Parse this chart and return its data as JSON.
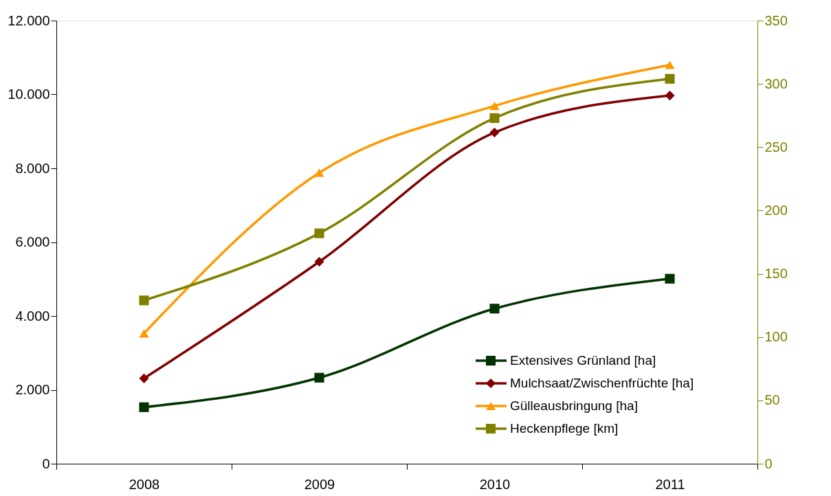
{
  "chart_data": {
    "type": "line",
    "categories": [
      "2008",
      "2009",
      "2010",
      "2011"
    ],
    "series": [
      {
        "name": "Extensives Grünland [ha]",
        "color": "#003300",
        "marker": "square",
        "values": [
          1530,
          2330,
          4200,
          5010
        ]
      },
      {
        "name": "Mulchsaat/Zwischenfrüchte [ha]",
        "color": "#800000",
        "marker": "diamond",
        "values": [
          2310,
          5470,
          8970,
          9970
        ]
      },
      {
        "name": "Gülleausbringung [ha]",
        "color": "#ff9900",
        "marker": "triangle",
        "values": [
          3530,
          7880,
          9690,
          10800
        ]
      },
      {
        "name": "Heckenpflege [km]",
        "color": "#808000",
        "marker": "square",
        "axis": "y2",
        "values": [
          129,
          182,
          273,
          304
        ]
      }
    ],
    "ylim": [
      0,
      12000
    ],
    "yticks": [
      0,
      {
        "value": 2000,
        "label": "2.000"
      },
      {
        "value": 4000,
        "label": "4.000"
      },
      {
        "value": 6000,
        "label": "6.000"
      },
      {
        "value": 8000,
        "label": "8.000"
      },
      {
        "value": 10000,
        "label": "10.000"
      },
      {
        "value": 12000,
        "label": "12.000"
      }
    ],
    "y2lim": [
      0,
      350
    ],
    "y2ticks": [
      0,
      50,
      100,
      150,
      200,
      250,
      300,
      350
    ],
    "grid": false,
    "legend": "bottom right",
    "line_style": "solid"
  }
}
